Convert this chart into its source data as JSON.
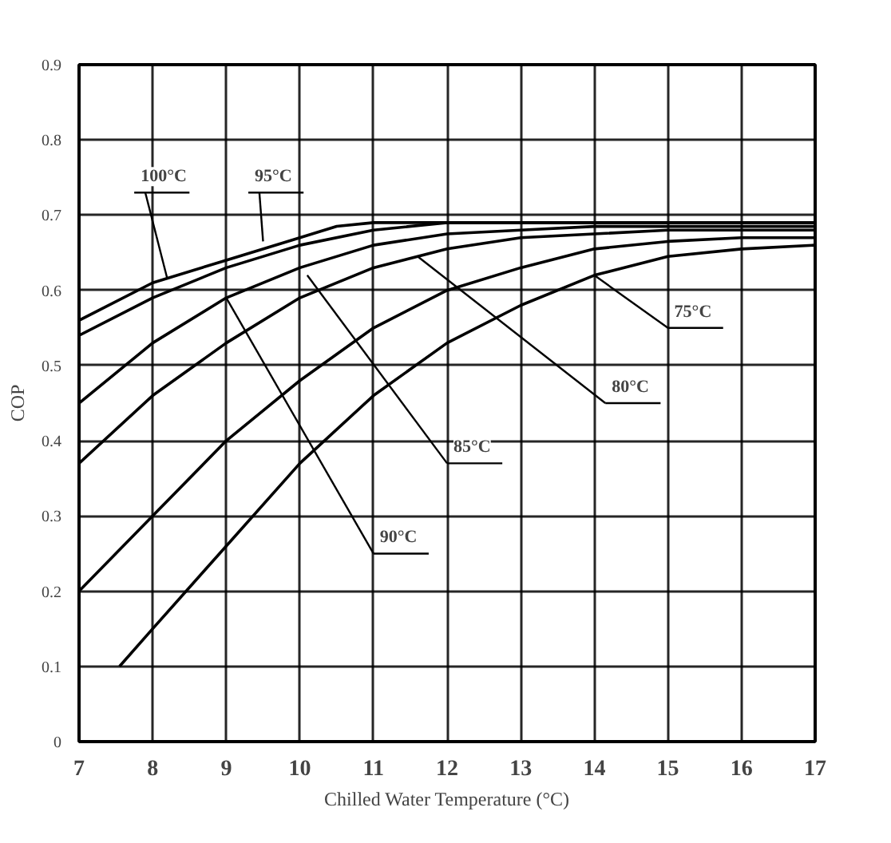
{
  "chart_data": {
    "type": "line",
    "xlabel": "Chilled Water Temperature (°C)",
    "ylabel": "COP",
    "xlim": [
      7,
      17
    ],
    "ylim": [
      0,
      0.9
    ],
    "xticks": [
      7,
      8,
      9,
      10,
      11,
      12,
      13,
      14,
      15,
      16,
      17
    ],
    "yticks": [
      0,
      0.1,
      0.2,
      0.3,
      0.4,
      0.5,
      0.6,
      0.7,
      0.8,
      0.9
    ],
    "grid": true,
    "marker": "none",
    "line_style": "solid",
    "series": [
      {
        "color": "#000000",
        "x": [
          7,
          8,
          9,
          10,
          10.5,
          11,
          12,
          13,
          14,
          15,
          16,
          17
        ],
        "values": [
          0.56,
          0.61,
          0.64,
          0.67,
          0.685,
          0.69,
          0.69,
          0.69,
          0.69,
          0.69,
          0.69,
          0.69
        ]
      },
      {
        "color": "#000000",
        "x": [
          7,
          8,
          9,
          10,
          11,
          12,
          13,
          14,
          15,
          16,
          17
        ],
        "values": [
          0.54,
          0.59,
          0.63,
          0.66,
          0.68,
          0.69,
          0.69,
          0.69,
          0.69,
          0.69,
          0.69
        ]
      },
      {
        "color": "#000000",
        "x": [
          7,
          8,
          9,
          10,
          11,
          12,
          13,
          14,
          15,
          16,
          17
        ],
        "values": [
          0.45,
          0.53,
          0.59,
          0.63,
          0.66,
          0.675,
          0.68,
          0.685,
          0.685,
          0.685,
          0.685
        ]
      },
      {
        "color": "#000000",
        "x": [
          7,
          8,
          9,
          10,
          11,
          12,
          13,
          14,
          15,
          16,
          17
        ],
        "values": [
          0.37,
          0.46,
          0.53,
          0.59,
          0.63,
          0.655,
          0.67,
          0.675,
          0.68,
          0.68,
          0.68
        ]
      },
      {
        "color": "#000000",
        "x": [
          7,
          8,
          9,
          10,
          11,
          12,
          13,
          14,
          15,
          16,
          17
        ],
        "values": [
          0.2,
          0.3,
          0.4,
          0.48,
          0.55,
          0.6,
          0.63,
          0.655,
          0.665,
          0.67,
          0.67
        ]
      },
      {
        "color": "#000000",
        "x": [
          7.55,
          8,
          9,
          10,
          11,
          12,
          13,
          14,
          15,
          16,
          17
        ],
        "values": [
          0.1,
          0.15,
          0.26,
          0.37,
          0.46,
          0.53,
          0.58,
          0.62,
          0.645,
          0.655,
          0.66
        ]
      }
    ],
    "annotations": [
      {
        "text": "100°C",
        "x": 8.2,
        "y": 0.615
      },
      {
        "text": "95°C",
        "x": 9.5,
        "y": 0.665
      },
      {
        "text": "90°C",
        "x": 9.0,
        "y": 0.59
      },
      {
        "text": "85°C",
        "x": 10.1,
        "y": 0.62
      },
      {
        "text": "80°C",
        "x": 11.6,
        "y": 0.645
      },
      {
        "text": "75°C",
        "x": 14,
        "y": 0.62
      }
    ]
  }
}
